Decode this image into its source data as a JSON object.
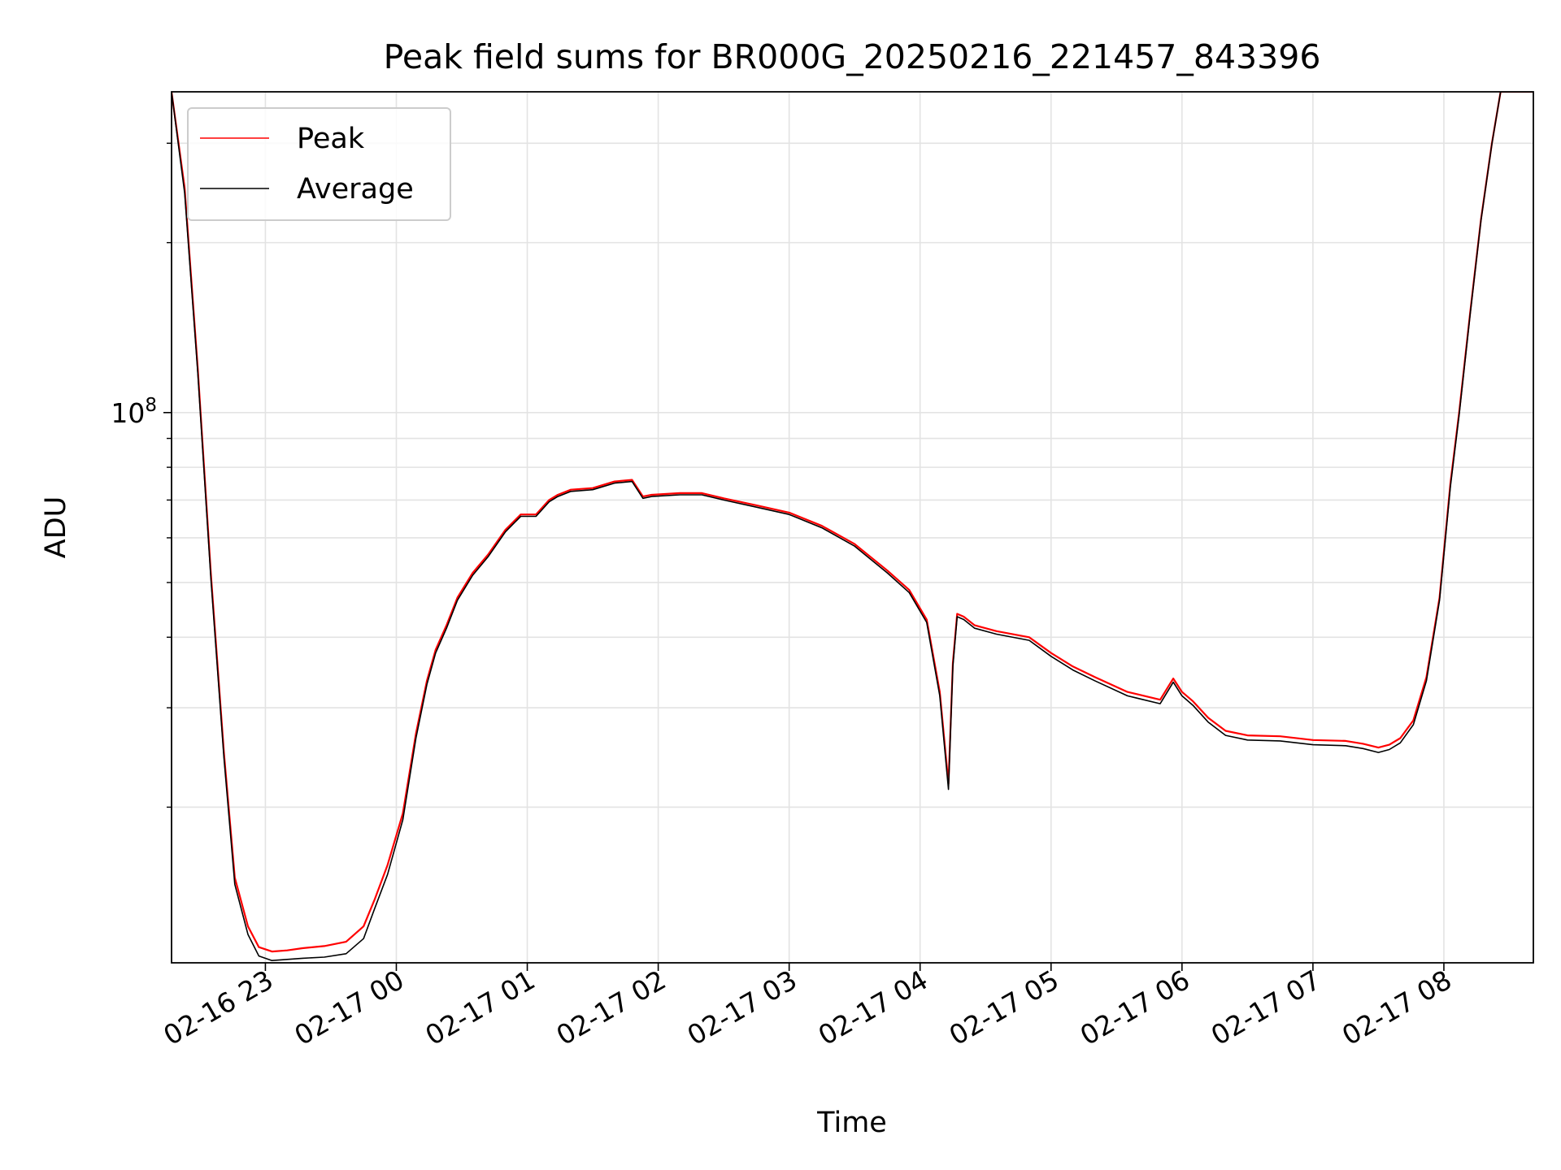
{
  "chart_data": {
    "type": "line",
    "title": "Peak field sums for BR000G_20250216_221457_843396",
    "xlabel": "Time",
    "ylabel": "ADU",
    "y_scale": "log",
    "ylim": [
      10600000,
      370000000
    ],
    "xlim": [
      "2025-02-16 22:17",
      "2025-02-17 08:41"
    ],
    "grid": true,
    "legend_position": "top-left",
    "x_ticks": [
      "02-16 23",
      "02-17 00",
      "02-17 01",
      "02-17 02",
      "02-17 03",
      "02-17 04",
      "02-17 05",
      "02-17 06",
      "02-17 07",
      "02-17 08"
    ],
    "x_tick_times": [
      "2025-02-16 23:00",
      "2025-02-17 00:00",
      "2025-02-17 01:00",
      "2025-02-17 02:00",
      "2025-02-17 03:00",
      "2025-02-17 04:00",
      "2025-02-17 05:00",
      "2025-02-17 06:00",
      "2025-02-17 07:00",
      "2025-02-17 08:00"
    ],
    "y_major_ticks": [
      {
        "value": 100000000,
        "base": "10",
        "exponent": "8"
      }
    ],
    "y_minor_ticks": [
      20000000,
      30000000,
      40000000,
      50000000,
      60000000,
      70000000,
      80000000,
      90000000,
      200000000,
      300000000
    ],
    "series": [
      {
        "name": "Peak",
        "color": "#ff0000",
        "x": [
          "2025-02-16 22:17",
          "2025-02-16 22:23",
          "2025-02-16 22:29",
          "2025-02-16 22:35",
          "2025-02-16 22:41",
          "2025-02-16 22:46",
          "2025-02-16 22:52",
          "2025-02-16 22:57",
          "2025-02-16 23:03",
          "2025-02-16 23:10",
          "2025-02-16 23:17",
          "2025-02-16 23:27",
          "2025-02-16 23:37",
          "2025-02-16 23:45",
          "2025-02-16 23:50",
          "2025-02-16 23:56",
          "2025-02-17 00:03",
          "2025-02-17 00:09",
          "2025-02-17 00:14",
          "2025-02-17 00:18",
          "2025-02-17 00:23",
          "2025-02-17 00:28",
          "2025-02-17 00:35",
          "2025-02-17 00:42",
          "2025-02-17 00:50",
          "2025-02-17 00:57",
          "2025-02-17 01:04",
          "2025-02-17 01:10",
          "2025-02-17 01:14",
          "2025-02-17 01:20",
          "2025-02-17 01:30",
          "2025-02-17 01:40",
          "2025-02-17 01:48",
          "2025-02-17 01:53",
          "2025-02-17 01:57",
          "2025-02-17 02:10",
          "2025-02-17 02:20",
          "2025-02-17 02:30",
          "2025-02-17 02:45",
          "2025-02-17 03:00",
          "2025-02-17 03:15",
          "2025-02-17 03:30",
          "2025-02-17 03:45",
          "2025-02-17 03:55",
          "2025-02-17 04:03",
          "2025-02-17 04:09",
          "2025-02-17 04:13",
          "2025-02-17 04:15",
          "2025-02-17 04:17",
          "2025-02-17 04:20",
          "2025-02-17 04:25",
          "2025-02-17 04:35",
          "2025-02-17 04:50",
          "2025-02-17 05:00",
          "2025-02-17 05:10",
          "2025-02-17 05:20",
          "2025-02-17 05:35",
          "2025-02-17 05:50",
          "2025-02-17 05:56",
          "2025-02-17 06:00",
          "2025-02-17 06:05",
          "2025-02-17 06:12",
          "2025-02-17 06:20",
          "2025-02-17 06:30",
          "2025-02-17 06:45",
          "2025-02-17 07:00",
          "2025-02-17 07:15",
          "2025-02-17 07:23",
          "2025-02-17 07:30",
          "2025-02-17 07:35",
          "2025-02-17 07:40",
          "2025-02-17 07:46",
          "2025-02-17 07:52",
          "2025-02-17 07:58",
          "2025-02-17 08:03",
          "2025-02-17 08:07",
          "2025-02-17 08:12",
          "2025-02-17 08:17",
          "2025-02-17 08:22",
          "2025-02-17 08:26",
          "2025-02-17 08:41"
        ],
        "y": [
          370000000,
          250000000,
          120000000,
          52000000,
          25000000,
          15000000,
          12300000,
          11300000,
          11100000,
          11150000,
          11250000,
          11350000,
          11550000,
          12300000,
          13700000,
          15800000,
          19500000,
          27000000,
          33500000,
          38000000,
          42000000,
          47000000,
          52000000,
          56000000,
          62000000,
          66000000,
          66000000,
          70000000,
          71500000,
          73000000,
          73500000,
          75500000,
          76000000,
          71000000,
          71500000,
          72000000,
          72000000,
          70500000,
          68500000,
          66500000,
          63000000,
          58500000,
          52500000,
          48500000,
          43000000,
          32000000,
          22000000,
          36000000,
          44000000,
          43500000,
          42000000,
          41000000,
          40000000,
          37500000,
          35500000,
          34000000,
          32000000,
          31000000,
          33800000,
          32000000,
          30800000,
          28800000,
          27300000,
          26800000,
          26700000,
          26300000,
          26200000,
          25900000,
          25500000,
          25800000,
          26500000,
          28500000,
          34000000,
          47000000,
          75000000,
          100000000,
          150000000,
          220000000,
          300000000,
          370000000,
          370000000
        ]
      },
      {
        "name": "Average",
        "color": "#000000",
        "x": [
          "2025-02-16 22:17",
          "2025-02-16 22:23",
          "2025-02-16 22:29",
          "2025-02-16 22:35",
          "2025-02-16 22:41",
          "2025-02-16 22:46",
          "2025-02-16 22:52",
          "2025-02-16 22:57",
          "2025-02-16 23:03",
          "2025-02-16 23:10",
          "2025-02-16 23:17",
          "2025-02-16 23:27",
          "2025-02-16 23:37",
          "2025-02-16 23:45",
          "2025-02-16 23:50",
          "2025-02-16 23:56",
          "2025-02-17 00:03",
          "2025-02-17 00:09",
          "2025-02-17 00:14",
          "2025-02-17 00:18",
          "2025-02-17 00:23",
          "2025-02-17 00:28",
          "2025-02-17 00:35",
          "2025-02-17 00:42",
          "2025-02-17 00:50",
          "2025-02-17 00:57",
          "2025-02-17 01:04",
          "2025-02-17 01:10",
          "2025-02-17 01:14",
          "2025-02-17 01:20",
          "2025-02-17 01:30",
          "2025-02-17 01:40",
          "2025-02-17 01:48",
          "2025-02-17 01:53",
          "2025-02-17 01:57",
          "2025-02-17 02:10",
          "2025-02-17 02:20",
          "2025-02-17 02:30",
          "2025-02-17 02:45",
          "2025-02-17 03:00",
          "2025-02-17 03:15",
          "2025-02-17 03:30",
          "2025-02-17 03:45",
          "2025-02-17 03:55",
          "2025-02-17 04:03",
          "2025-02-17 04:09",
          "2025-02-17 04:13",
          "2025-02-17 04:15",
          "2025-02-17 04:17",
          "2025-02-17 04:20",
          "2025-02-17 04:25",
          "2025-02-17 04:35",
          "2025-02-17 04:50",
          "2025-02-17 05:00",
          "2025-02-17 05:10",
          "2025-02-17 05:20",
          "2025-02-17 05:35",
          "2025-02-17 05:50",
          "2025-02-17 05:56",
          "2025-02-17 06:00",
          "2025-02-17 06:05",
          "2025-02-17 06:12",
          "2025-02-17 06:20",
          "2025-02-17 06:30",
          "2025-02-17 06:45",
          "2025-02-17 07:00",
          "2025-02-17 07:15",
          "2025-02-17 07:23",
          "2025-02-17 07:30",
          "2025-02-17 07:35",
          "2025-02-17 07:40",
          "2025-02-17 07:46",
          "2025-02-17 07:52",
          "2025-02-17 07:58",
          "2025-02-17 08:03",
          "2025-02-17 08:07",
          "2025-02-17 08:12",
          "2025-02-17 08:17",
          "2025-02-17 08:22",
          "2025-02-17 08:26",
          "2025-02-17 08:41"
        ],
        "y": [
          370000000,
          245000000,
          118000000,
          51000000,
          24500000,
          14600000,
          11900000,
          10900000,
          10700000,
          10750000,
          10800000,
          10850000,
          11000000,
          11700000,
          13200000,
          15200000,
          19000000,
          26500000,
          33000000,
          37500000,
          41500000,
          46500000,
          51500000,
          55500000,
          61500000,
          65500000,
          65500000,
          69500000,
          71000000,
          72500000,
          73000000,
          75000000,
          75500000,
          70500000,
          71000000,
          71500000,
          71500000,
          70000000,
          68000000,
          66000000,
          62500000,
          58000000,
          52000000,
          48000000,
          42500000,
          31500000,
          21500000,
          35500000,
          43500000,
          43000000,
          41500000,
          40500000,
          39500000,
          37000000,
          35000000,
          33500000,
          31500000,
          30500000,
          33300000,
          31500000,
          30300000,
          28300000,
          26800000,
          26300000,
          26200000,
          25800000,
          25700000,
          25400000,
          25000000,
          25300000,
          26000000,
          28000000,
          33500000,
          46500000,
          74000000,
          99000000,
          149000000,
          219000000,
          299000000,
          370000000,
          370000000
        ]
      }
    ]
  }
}
